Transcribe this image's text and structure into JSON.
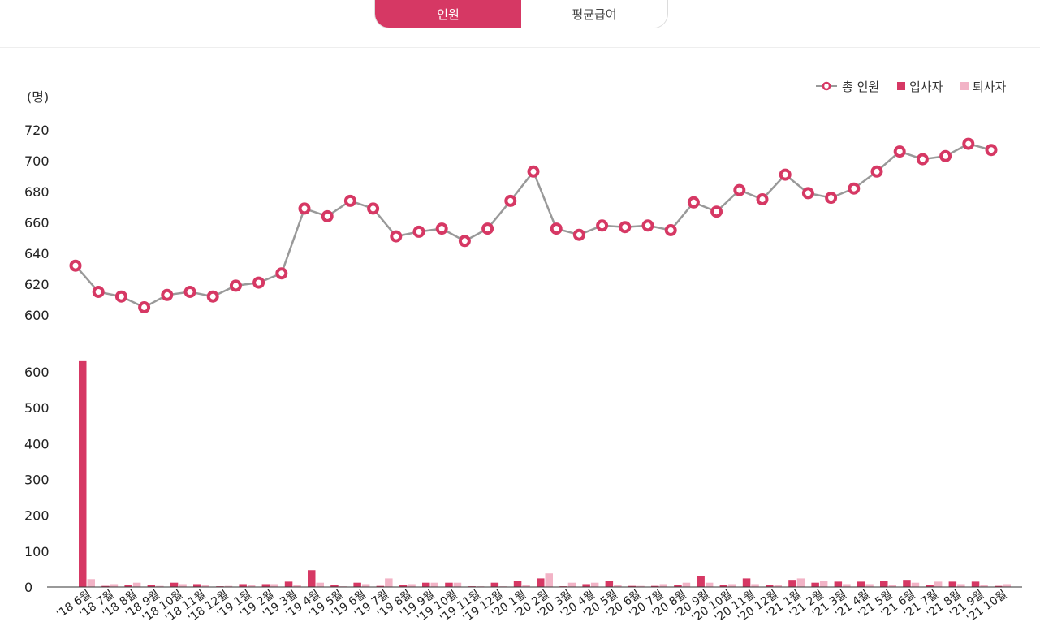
{
  "tabs": [
    {
      "label": "인원",
      "active": true
    },
    {
      "label": "평균급여",
      "active": false
    }
  ],
  "colors": {
    "accent": "#d63864",
    "leave": "#f2b3c6",
    "line": "#999999"
  },
  "legend": {
    "total": "총 인원",
    "join": "입사자",
    "leave": "퇴사자"
  },
  "chart_data": {
    "type": "line+bar",
    "unit": "(명)",
    "categories": [
      "'18 6월",
      "'18 7월",
      "'18 8월",
      "'18 9월",
      "'18 10월",
      "'18 11월",
      "'18 12월",
      "'19 1월",
      "'19 2월",
      "'19 3월",
      "'19 4월",
      "'19 5월",
      "'19 6월",
      "'19 7월",
      "'19 8월",
      "'19 9월",
      "'19 10월",
      "'19 11월",
      "'19 12월",
      "'20 1월",
      "'20 2월",
      "'20 3월",
      "'20 4월",
      "'20 5월",
      "'20 6월",
      "'20 7월",
      "'20 8월",
      "'20 9월",
      "'20 10월",
      "'20 11월",
      "'20 12월",
      "'21 1월",
      "'21 2월",
      "'21 3월",
      "'21 4월",
      "'21 5월",
      "'21 6월",
      "'21 7월",
      "'21 8월",
      "'21 9월",
      "'21 10월"
    ],
    "line": {
      "name": "총 인원",
      "ylim": [
        600,
        720
      ],
      "yticks": [
        600,
        620,
        640,
        660,
        680,
        700,
        720
      ],
      "values": [
        632,
        615,
        612,
        605,
        613,
        615,
        612,
        619,
        621,
        627,
        669,
        664,
        674,
        669,
        651,
        654,
        656,
        648,
        656,
        674,
        693,
        656,
        652,
        658,
        657,
        658,
        655,
        673,
        667,
        681,
        675,
        691,
        679,
        676,
        682,
        693,
        706,
        701,
        703,
        711,
        707
      ]
    },
    "bars": {
      "ylim": [
        0,
        640
      ],
      "yticks": [
        0,
        100,
        200,
        300,
        400,
        500,
        600
      ],
      "series": [
        {
          "name": "입사자",
          "values": [
            632,
            3,
            5,
            5,
            12,
            8,
            2,
            8,
            8,
            15,
            47,
            5,
            12,
            3,
            5,
            12,
            12,
            2,
            12,
            18,
            24,
            2,
            8,
            18,
            3,
            3,
            5,
            30,
            5,
            24,
            5,
            20,
            12,
            15,
            15,
            18,
            20,
            5,
            15,
            15,
            3
          ]
        },
        {
          "name": "퇴사자",
          "values": [
            22,
            8,
            12,
            3,
            8,
            5,
            3,
            5,
            8,
            5,
            12,
            2,
            8,
            24,
            8,
            12,
            12,
            2,
            2,
            5,
            38,
            12,
            12,
            5,
            3,
            8,
            12,
            12,
            8,
            8,
            5,
            24,
            18,
            8,
            8,
            5,
            12,
            15,
            8,
            5,
            8
          ]
        }
      ]
    }
  }
}
